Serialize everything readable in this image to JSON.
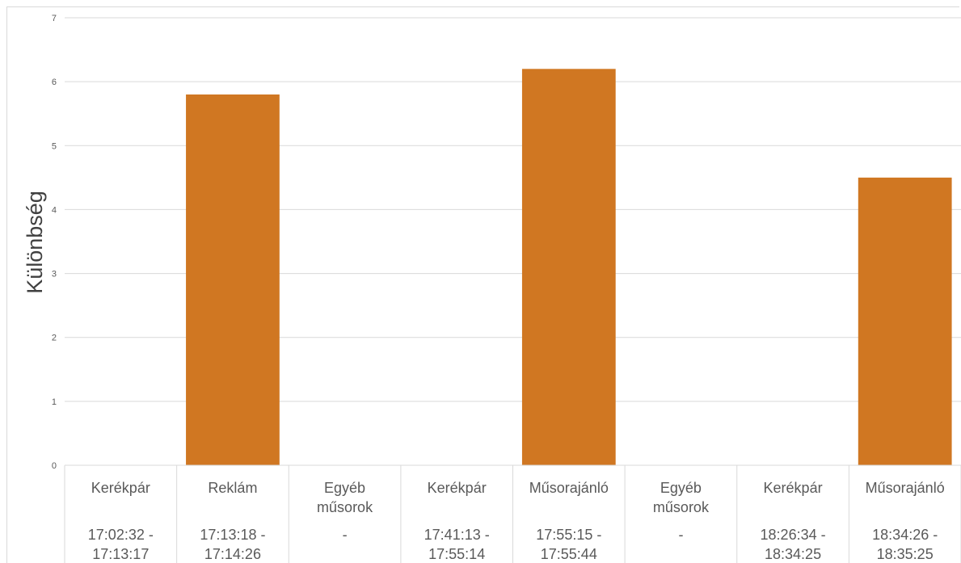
{
  "chart_data": {
    "type": "bar",
    "ylabel": "Különbség",
    "ylim": [
      0,
      7
    ],
    "yticks": [
      "0",
      "1",
      "2",
      "3",
      "4",
      "5",
      "6",
      "7"
    ],
    "grid": true,
    "bar_color": "#D07722",
    "grid_color": "#d9d9d9",
    "categories": [
      {
        "name": "Kerékpár",
        "name2": "",
        "time1": "17:02:32 -",
        "time2": "17:13:17"
      },
      {
        "name": "Reklám",
        "name2": "",
        "time1": "17:13:18 -",
        "time2": "17:14:26"
      },
      {
        "name": "Egyéb",
        "name2": "műsorok",
        "time1": "-",
        "time2": ""
      },
      {
        "name": "Kerékpár",
        "name2": "",
        "time1": "17:41:13 -",
        "time2": "17:55:14"
      },
      {
        "name": "Műsorajánló",
        "name2": "",
        "time1": "17:55:15 -",
        "time2": "17:55:44"
      },
      {
        "name": "Egyéb",
        "name2": "műsorok",
        "time1": "-",
        "time2": ""
      },
      {
        "name": "Kerékpár",
        "name2": "",
        "time1": "18:26:34 -",
        "time2": "18:34:25"
      },
      {
        "name": "Műsorajánló",
        "name2": "",
        "time1": "18:34:26 -",
        "time2": "18:35:25"
      }
    ],
    "values": [
      0,
      5.8,
      0,
      0,
      6.2,
      0,
      0,
      4.5
    ]
  }
}
